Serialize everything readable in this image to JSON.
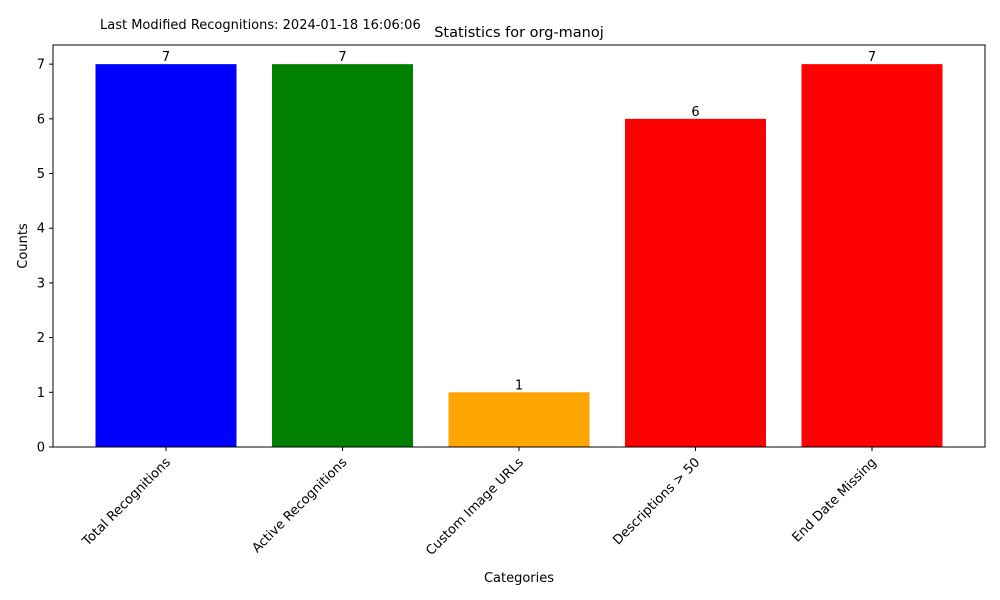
{
  "chart_data": {
    "type": "bar",
    "title": "Statistics for org-manoj",
    "annotation": "Last Modified Recognitions: 2024-01-18 16:06:06",
    "xlabel": "Categories",
    "ylabel": "Counts",
    "categories": [
      "Total Recognitions",
      "Active Recognitions",
      "Custom Image URLs",
      "Descriptions > 50",
      "End Date Missing"
    ],
    "values": [
      7,
      7,
      1,
      6,
      7
    ],
    "colors": [
      "#0000ff",
      "#008000",
      "#ffa500",
      "#ff0000",
      "#ff0000"
    ],
    "ylim": [
      0,
      7.35
    ],
    "yticks": [
      0,
      1,
      2,
      3,
      4,
      5,
      6,
      7
    ],
    "grid": false,
    "legend": "none",
    "data_labels": true,
    "xtick_rotation": 45
  }
}
